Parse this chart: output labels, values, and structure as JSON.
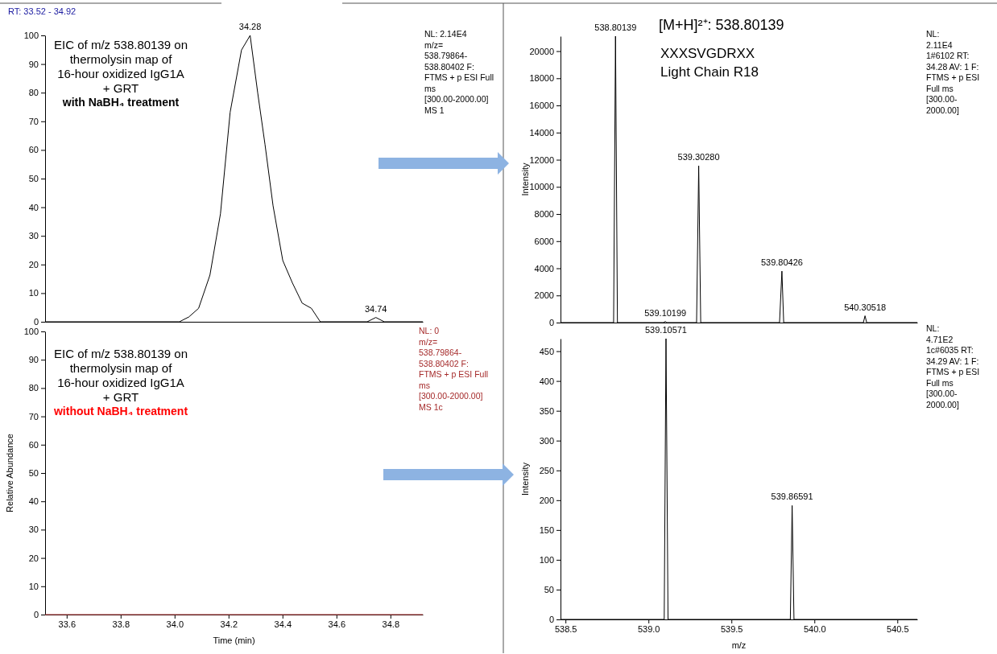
{
  "chart_data": [
    {
      "type": "line",
      "title": "EIC of m/z 538.80139 on\nthermolysin map of\n16-hour oxidized IgG1A\n+ GRT",
      "subtitle": "with NaBH₄ treatment",
      "xlim": [
        33.52,
        34.92
      ],
      "ylim": [
        0,
        100
      ],
      "yticks": [
        0,
        10,
        20,
        30,
        40,
        50,
        60,
        70,
        80,
        90,
        100
      ],
      "tick_labels": "y",
      "series": [
        {
          "color": "#000000",
          "x": [
            33.52,
            34.018,
            34.053,
            34.089,
            34.131,
            34.17,
            34.206,
            34.248,
            34.28,
            34.308,
            34.335,
            34.365,
            34.401,
            34.437,
            34.473,
            34.507,
            34.54,
            34.714,
            34.746,
            34.777,
            34.92
          ],
          "values": [
            0,
            0,
            1.7,
            4.7,
            16.3,
            37.7,
            73.2,
            94.9,
            100,
            80,
            62,
            40.5,
            21.4,
            13.5,
            6.5,
            4.7,
            0,
            0,
            1.5,
            0,
            0
          ]
        }
      ],
      "annotations": [
        "NL: 2.14E4\nm/z=\n538.79864-\n538.80402 F:\nFTMS + p ESI Full\nms\n[300.00-2000.00]\nMS 1",
        "RT: 33.52 - 34.92",
        {
          "text": "34.28",
          "x": 34.28,
          "y": 100
        },
        {
          "text": "34.74",
          "x": 34.746,
          "y": 1.5
        }
      ]
    },
    {
      "type": "line",
      "title": "[M+H]²⁺: 538.80139",
      "subtitle": "XXXSVGDRXX\nLight Chain R18",
      "ylabel": "Intensity",
      "xlim": [
        538.47,
        540.62
      ],
      "ylim": [
        0,
        21100
      ],
      "yticks": [
        0,
        2000,
        4000,
        6000,
        8000,
        10000,
        12000,
        14000,
        16000,
        18000,
        20000
      ],
      "tick_labels": "y",
      "series": [
        {
          "color": "#000000",
          "x": [
            538.47,
            538.79,
            538.80139,
            538.813,
            539.09,
            539.10199,
            539.11,
            539.29,
            539.3028,
            539.315,
            539.79,
            539.80426,
            539.815,
            540.295,
            540.30518,
            540.315,
            540.62
          ],
          "values": [
            0,
            0,
            21100,
            0,
            0,
            80,
            0,
            0,
            11550,
            0,
            0,
            3790,
            0,
            0,
            500,
            0,
            0
          ]
        }
      ],
      "annotations": [
        "NL:\n2.11E4\n1#6102  RT:\n34.28  AV: 1 F:\nFTMS + p ESI\nFull ms\n[300.00-\n2000.00]",
        {
          "text": "538.80139",
          "x": 538.80139,
          "y": 21100
        },
        {
          "text": "539.10199",
          "x": 539.10199,
          "y": 80
        },
        {
          "text": "539.30280",
          "x": 539.3028,
          "y": 11550
        },
        {
          "text": "539.80426",
          "x": 539.80426,
          "y": 3790
        },
        {
          "text": "540.30518",
          "x": 540.30518,
          "y": 500
        }
      ]
    },
    {
      "type": "line",
      "title": "EIC of m/z 538.80139 on\nthermolysin map of\n16-hour oxidized IgG1A\n+ GRT",
      "subtitle": "without NaBH₄ treatment",
      "xlabel": "Time (min)",
      "ylabel": "Relative Abundance",
      "xlim": [
        33.52,
        34.92
      ],
      "xticks": [
        33.6,
        33.8,
        {
          "value": 34.0,
          "label": "34.0"
        },
        34.2,
        34.4,
        34.6,
        34.8
      ],
      "ylim": [
        0,
        100
      ],
      "yticks": [
        0,
        10,
        20,
        30,
        40,
        50,
        60,
        70,
        80,
        90,
        100
      ],
      "series": [
        {
          "color": "#a52a2a",
          "x": [
            33.52,
            34.92
          ],
          "values": [
            0,
            0
          ]
        }
      ],
      "annotations": [
        "NL: 0\nm/z=\n538.79864-\n538.80402 F:\nFTMS + p ESI Full\nms\n[300.00-2000.00]\nMS 1c"
      ]
    },
    {
      "type": "line",
      "xlabel": "m/z",
      "ylabel": "Intensity",
      "xlim": [
        538.47,
        540.62
      ],
      "xticks": [
        538.5,
        {
          "value": 539.0,
          "label": "539.0"
        },
        539.5,
        {
          "value": 540.0,
          "label": "540.0"
        },
        540.5
      ],
      "ylim": [
        0,
        471
      ],
      "yticks": [
        0,
        50,
        100,
        150,
        200,
        250,
        300,
        350,
        400,
        450
      ],
      "series": [
        {
          "color": "#000000",
          "x": [
            538.47,
            539.095,
            539.10571,
            539.118,
            539.855,
            539.86591,
            539.877,
            540.62
          ],
          "values": [
            0,
            0,
            471,
            0,
            0,
            191,
            0,
            0
          ]
        }
      ],
      "annotations": [
        "NL:\n4.71E2\n1c#6035  RT:\n34.29  AV: 1 F:\nFTMS + p ESI\nFull ms\n[300.00-\n2000.00]",
        {
          "text": "539.10571",
          "x": 539.10571,
          "y": 471
        },
        {
          "text": "539.86591",
          "x": 539.86591,
          "y": 191
        }
      ]
    }
  ]
}
